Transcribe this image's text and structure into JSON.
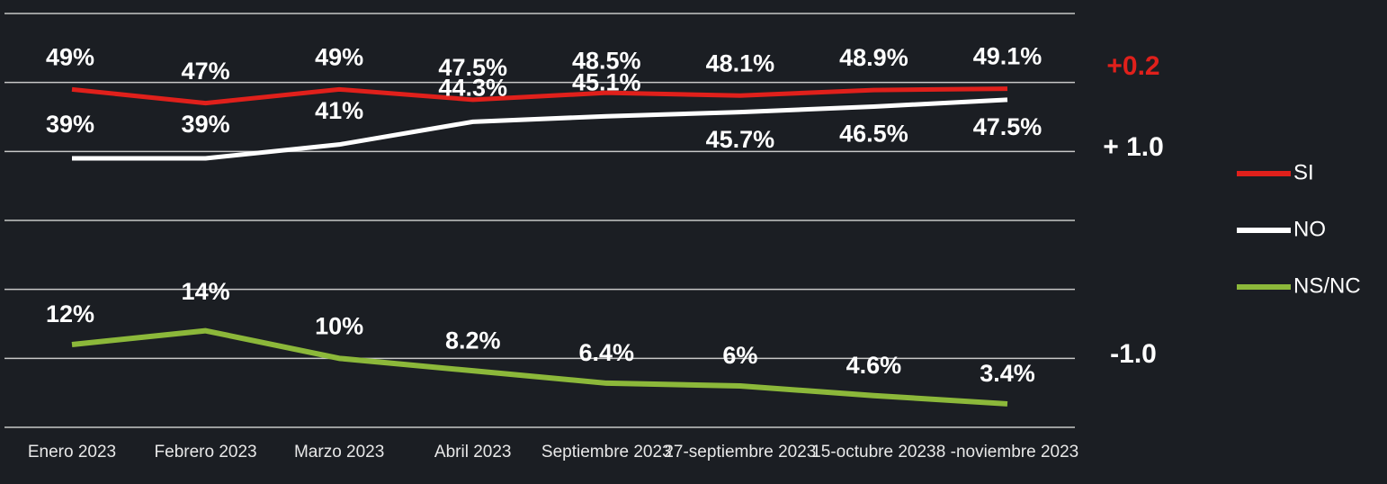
{
  "chart_data": {
    "type": "line",
    "categories": [
      "Enero 2023",
      "Febrero 2023",
      "Marzo 2023",
      "Abril 2023",
      "Septiembre 2023",
      "27-septiembre 2023",
      "15-octubre 2023",
      "8 -noviembre 2023"
    ],
    "series": [
      {
        "name": "SI",
        "color": "#e0201b",
        "values": [
          49,
          47,
          49,
          47.5,
          48.5,
          48.1,
          48.9,
          49.1
        ],
        "value_labels": [
          "49%",
          "47%",
          "49%",
          "47.5%",
          "48.5%",
          "48.1%",
          "48.9%",
          "49.1%"
        ]
      },
      {
        "name": "NO",
        "color": "#ffffff",
        "values": [
          39,
          39,
          41,
          44.3,
          45.1,
          45.7,
          46.5,
          47.5
        ],
        "value_labels": [
          "39%",
          "39%",
          "41%",
          "44.3%",
          "45.1%",
          "45.7%",
          "46.5%",
          "47.5%"
        ]
      },
      {
        "name": "NS/NC",
        "color": "#8cb83a",
        "values": [
          12,
          14,
          10,
          8.2,
          6.4,
          6,
          4.6,
          3.4
        ],
        "value_labels": [
          "12%",
          "14%",
          "10%",
          "8.2%",
          "6.4%",
          "6%",
          "4.6%",
          "3.4%"
        ]
      }
    ],
    "ylim": [
      0,
      60
    ],
    "yticks": [
      0,
      10,
      20,
      30,
      40,
      50,
      60
    ],
    "grid": true,
    "annotations": [
      {
        "text": "+0.2",
        "color": "#e0201b"
      },
      {
        "text": "+ 1.0",
        "color": "#ffffff"
      },
      {
        "text": "-1.0",
        "color": "#ffffff"
      }
    ],
    "legend": "right"
  }
}
